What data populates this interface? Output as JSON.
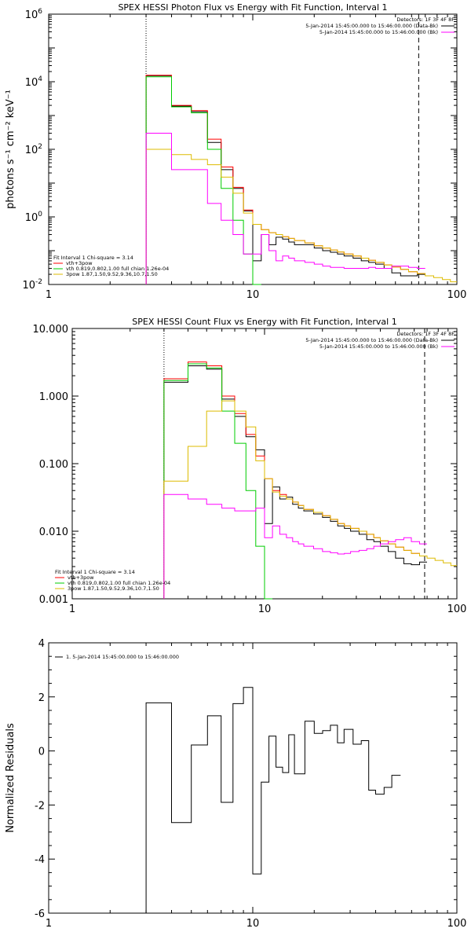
{
  "figure_title": "",
  "chart_data": [
    {
      "type": "line",
      "title": "SPEX HESSI Photon Flux vs Energy with Fit Function, Interval 1",
      "ylabel": "photons s⁻¹ cm⁻² keV⁻¹",
      "xlabel": "",
      "xscale": "log",
      "yscale": "log",
      "xlim": [
        1,
        100
      ],
      "ylim": [
        0.01,
        1000000
      ],
      "x_ticks": [
        {
          "v": 1,
          "label": "1"
        },
        {
          "v": 10,
          "label": "10"
        },
        {
          "v": 100,
          "label": "100"
        }
      ],
      "y_ticks": [
        {
          "v": 0.01,
          "base": "10",
          "exp": "-2"
        },
        {
          "v": 1,
          "base": "10",
          "exp": "0"
        },
        {
          "v": 100,
          "base": "10",
          "exp": "2"
        },
        {
          "v": 10000,
          "base": "10",
          "exp": "4"
        },
        {
          "v": 1000000,
          "base": "10",
          "exp": "6"
        }
      ],
      "vlines": [
        {
          "x": 3.0,
          "style": "dotted"
        },
        {
          "x": 65,
          "style": "dashed"
        }
      ],
      "legend_top": {
        "header": "Detectors: 1F 3F 4F 8F",
        "entries": [
          {
            "text": "5-Jan-2014 15:45:00.000 to 15:46:00.000 (Data-Bk)",
            "color": "#000000"
          },
          {
            "text": "5-Jan-2014 15:45:00.000 to 15:46:00.000 (Bk)",
            "color": "#ff00ff"
          }
        ]
      },
      "legend_bottom": {
        "header": "Fit Interval 1    Chi-square = 3.14",
        "entries": [
          {
            "text": "vth+3pow",
            "color": "#ff0000"
          },
          {
            "text": "vth 0.819,0.802,1.00  full chian 1.26e-04",
            "color": "#00cc00"
          },
          {
            "text": "3pow 1.87,1.50,9.52,9.36,10.7,1.50",
            "color": "#ddbb00"
          }
        ]
      },
      "edges": [
        3,
        4,
        5,
        6,
        7,
        8,
        9,
        10,
        11,
        12,
        13,
        14,
        15,
        16,
        18,
        20,
        22,
        24,
        26,
        28,
        31,
        34,
        37,
        40,
        44,
        48,
        53,
        58,
        64,
        70,
        77,
        85,
        93,
        100
      ],
      "series": [
        {
          "name": "Data-Bk",
          "color": "#000000",
          "values": [
            15000,
            1900,
            1300,
            160,
            25,
            7,
            1.5,
            0.05,
            0.3,
            0.15,
            0.25,
            0.22,
            0.18,
            0.15,
            0.15,
            0.12,
            0.1,
            0.09,
            0.08,
            0.07,
            0.06,
            0.05,
            0.045,
            0.04,
            0.03,
            0.022,
            0.018,
            0.018,
            0.02
          ]
        },
        {
          "name": "vth+3pow",
          "color": "#ff0000",
          "values": [
            15500,
            2000,
            1400,
            200,
            30,
            7.5,
            1.6,
            0.6,
            0.42,
            0.34,
            0.3,
            0.26,
            0.23,
            0.2,
            0.17,
            0.14,
            0.12,
            0.105,
            0.092,
            0.08,
            0.07,
            0.06,
            0.052,
            0.045,
            0.038,
            0.033,
            0.028,
            0.024,
            0.021
          ]
        },
        {
          "name": "vth",
          "color": "#00cc00",
          "values": [
            14000,
            1800,
            1200,
            100,
            7,
            0.8,
            0.08,
            0.01
          ]
        },
        {
          "name": "3pow",
          "color": "#ddbb00",
          "values": [
            100,
            70,
            50,
            35,
            15,
            5,
            1.3,
            0.6,
            0.42,
            0.34,
            0.3,
            0.26,
            0.23,
            0.2,
            0.17,
            0.14,
            0.12,
            0.105,
            0.092,
            0.08,
            0.07,
            0.06,
            0.052,
            0.045,
            0.038,
            0.033,
            0.028,
            0.024,
            0.021,
            0.018,
            0.016,
            0.014,
            0.012
          ]
        },
        {
          "name": "Bk",
          "color": "#ff00ff",
          "values": [
            300,
            25,
            25,
            2.5,
            0.8,
            0.3,
            0.08,
            0.08,
            0.3,
            0.1,
            0.05,
            0.07,
            0.06,
            0.05,
            0.045,
            0.04,
            0.035,
            0.032,
            0.032,
            0.03,
            0.03,
            0.03,
            0.032,
            0.03,
            0.03,
            0.035,
            0.035,
            0.032,
            0.03
          ]
        }
      ]
    },
    {
      "type": "line",
      "title": "SPEX HESSI Count Flux vs Energy with Fit Function, Interval 1",
      "ylabel": "",
      "xlabel": "",
      "xscale": "log",
      "yscale": "log",
      "xlim": [
        1,
        100
      ],
      "ylim": [
        0.001,
        10
      ],
      "x_ticks": [
        {
          "v": 1,
          "label": "1"
        },
        {
          "v": 10,
          "label": "10"
        },
        {
          "v": 100,
          "label": "100"
        }
      ],
      "y_ticks": [
        {
          "v": 0.001,
          "label": "0.001"
        },
        {
          "v": 0.01,
          "label": "0.010"
        },
        {
          "v": 0.1,
          "label": "0.100"
        },
        {
          "v": 1,
          "label": "1.000"
        },
        {
          "v": 10,
          "label": "10.000"
        }
      ],
      "vlines": [
        {
          "x": 3.0,
          "style": "dotted"
        },
        {
          "x": 68,
          "style": "dashed"
        }
      ],
      "legend_top": {
        "header": "Detectors: 1F 3F 4F 8F",
        "entries": [
          {
            "text": "5-Jan-2014 15:45:00.000 to 15:46:00.000 (Data-Bk)",
            "color": "#000000"
          },
          {
            "text": "5-Jan-2014 15:45:00.000 to 15:46:00.000 (Bk)",
            "color": "#ff00ff"
          }
        ]
      },
      "legend_bottom": {
        "header": "Fit Interval 1    Chi-square = 3.14",
        "entries": [
          {
            "text": "vth+3pow",
            "color": "#ff0000"
          },
          {
            "text": "vth 0.819,0.802,1.00  full chian 1.26e-04",
            "color": "#00cc00"
          },
          {
            "text": "3pow 1.87,1.50,9.52,9.36,10.7,1.50",
            "color": "#ddbb00"
          }
        ]
      },
      "edges": [
        3,
        4,
        5,
        6,
        7,
        8,
        9,
        10,
        11,
        12,
        13,
        14,
        15,
        16,
        18,
        20,
        22,
        24,
        26,
        28,
        31,
        34,
        37,
        40,
        44,
        48,
        53,
        58,
        64,
        70,
        77,
        85,
        93,
        100
      ],
      "series": [
        {
          "name": "Data-Bk",
          "color": "#000000",
          "values": [
            1.6,
            2.8,
            2.5,
            0.9,
            0.5,
            0.25,
            0.16,
            0.013,
            0.045,
            0.03,
            0.032,
            0.025,
            0.022,
            0.02,
            0.018,
            0.016,
            0.014,
            0.012,
            0.011,
            0.01,
            0.009,
            0.0075,
            0.007,
            0.006,
            0.005,
            0.004,
            0.0033,
            0.0032,
            0.0035
          ]
        },
        {
          "name": "vth+3pow",
          "color": "#ff0000",
          "values": [
            1.8,
            3.2,
            2.8,
            1.0,
            0.55,
            0.27,
            0.13,
            0.06,
            0.04,
            0.035,
            0.03,
            0.027,
            0.024,
            0.021,
            0.019,
            0.017,
            0.015,
            0.013,
            0.012,
            0.011,
            0.01,
            0.009,
            0.008,
            0.0072,
            0.0065,
            0.0058,
            0.0052,
            0.0047,
            0.0043
          ]
        },
        {
          "name": "vth",
          "color": "#00cc00",
          "values": [
            1.7,
            3.0,
            2.6,
            0.6,
            0.2,
            0.04,
            0.006,
            0.0008
          ]
        },
        {
          "name": "3pow",
          "color": "#ddbb00",
          "values": [
            0.055,
            0.18,
            0.6,
            0.85,
            0.6,
            0.35,
            0.11,
            0.06,
            0.038,
            0.033,
            0.03,
            0.027,
            0.024,
            0.021,
            0.019,
            0.017,
            0.015,
            0.013,
            0.012,
            0.011,
            0.01,
            0.009,
            0.008,
            0.0072,
            0.0065,
            0.0058,
            0.0052,
            0.0047,
            0.0043,
            0.004,
            0.0037,
            0.0034,
            0.0031
          ]
        },
        {
          "name": "Bk",
          "color": "#ff00ff",
          "values": [
            0.035,
            0.03,
            0.025,
            0.022,
            0.02,
            0.02,
            0.022,
            0.008,
            0.012,
            0.009,
            0.008,
            0.007,
            0.0065,
            0.006,
            0.0055,
            0.005,
            0.0048,
            0.0046,
            0.0047,
            0.005,
            0.0052,
            0.0055,
            0.006,
            0.0065,
            0.007,
            0.0075,
            0.008,
            0.007,
            0.0065
          ]
        }
      ]
    },
    {
      "type": "line",
      "title": "",
      "ylabel": "Normalized Residuals",
      "xlabel": "",
      "xscale": "log",
      "yscale": "linear",
      "xlim": [
        1,
        100
      ],
      "ylim": [
        -6,
        4
      ],
      "x_ticks": [
        {
          "v": 1,
          "label": "1"
        },
        {
          "v": 10,
          "label": "10"
        },
        {
          "v": 100,
          "label": "100"
        }
      ],
      "y_ticks": [
        {
          "v": -6,
          "label": "-6"
        },
        {
          "v": -4,
          "label": "-4"
        },
        {
          "v": -2,
          "label": "-2"
        },
        {
          "v": 0,
          "label": "0"
        },
        {
          "v": 2,
          "label": "2"
        },
        {
          "v": 4,
          "label": "4"
        }
      ],
      "legend_top_left": {
        "entries": [
          {
            "text": "1.  5-Jan-2014 15:45:00.000 to 15:46:00.000",
            "color": "#000000"
          }
        ]
      },
      "edges": [
        3,
        4,
        5,
        6,
        7,
        8,
        9,
        10,
        11,
        12,
        13,
        14,
        15,
        16,
        18,
        20,
        22,
        24,
        26,
        28,
        31,
        34,
        37,
        40,
        44,
        48,
        53,
        58,
        64,
        70
      ],
      "series": [
        {
          "name": "1.",
          "color": "#000000",
          "values": [
            1.78,
            -2.65,
            0.22,
            1.3,
            -1.9,
            1.75,
            2.35,
            -4.55,
            -1.15,
            0.55,
            -0.6,
            -0.8,
            0.6,
            -0.85,
            1.1,
            0.65,
            0.75,
            0.95,
            0.3,
            0.8,
            0.25,
            0.38,
            -1.45,
            -1.6,
            -1.35,
            -0.9
          ]
        }
      ]
    }
  ]
}
